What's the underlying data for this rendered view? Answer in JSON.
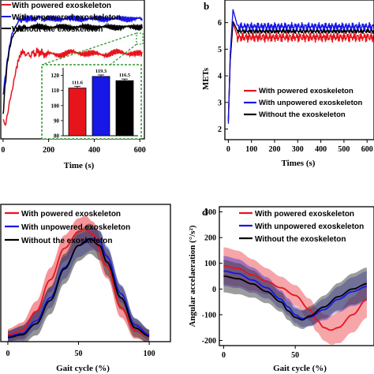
{
  "colors": {
    "powered": "#e8141c",
    "unpowered": "#1717e6",
    "without": "#000000"
  },
  "chart_data": [
    {
      "id": "a",
      "type": "line",
      "xlabel": "Time (s)",
      "xticks": [
        "0",
        "200",
        "400",
        "600"
      ],
      "xlim": [
        -10,
        620
      ],
      "ylim": [
        0,
        1
      ],
      "series": [
        {
          "name": "With powered exoskeleton",
          "x": [
            0,
            10,
            20,
            30,
            40,
            50,
            60,
            70,
            80,
            90,
            100,
            110,
            120,
            130,
            140,
            150,
            160,
            170,
            180,
            200,
            250,
            300,
            350,
            400,
            450,
            500,
            550,
            600,
            610
          ],
          "y": [
            0.14,
            0.1,
            0.18,
            0.28,
            0.35,
            0.44,
            0.52,
            0.58,
            0.62,
            0.63,
            0.6,
            0.62,
            0.59,
            0.63,
            0.6,
            0.64,
            0.61,
            0.63,
            0.6,
            0.62,
            0.6,
            0.63,
            0.61,
            0.62,
            0.6,
            0.63,
            0.61,
            0.62,
            0.61
          ]
        },
        {
          "name": "With unpowered exoskeleton",
          "x": [
            0,
            10,
            20,
            30,
            40,
            50,
            60,
            70,
            80,
            90,
            100,
            120,
            140,
            160,
            180,
            200,
            250,
            300,
            350,
            400,
            450,
            500,
            550,
            600,
            610
          ],
          "y": [
            0.32,
            0.45,
            0.58,
            0.68,
            0.76,
            0.8,
            0.82,
            0.86,
            0.85,
            0.87,
            0.86,
            0.87,
            0.86,
            0.88,
            0.86,
            0.87,
            0.86,
            0.87,
            0.86,
            0.87,
            0.86,
            0.87,
            0.86,
            0.87,
            0.86
          ]
        },
        {
          "name": "Without the exoskeleton",
          "x": [
            0,
            10,
            20,
            30,
            40,
            50,
            60,
            70,
            80,
            90,
            100,
            150,
            200,
            250,
            300,
            350,
            400,
            450,
            500,
            550,
            600,
            610
          ],
          "y": [
            0.18,
            0.4,
            0.56,
            0.66,
            0.73,
            0.76,
            0.78,
            0.8,
            0.79,
            0.81,
            0.8,
            0.81,
            0.8,
            0.81,
            0.8,
            0.81,
            0.8,
            0.81,
            0.8,
            0.81,
            0.8,
            0.81
          ]
        }
      ],
      "inset": {
        "type": "bar",
        "yticks": [
          "120",
          "110",
          "100",
          "90",
          "80"
        ],
        "ylim": [
          80,
          125
        ],
        "values": [
          111.6,
          119.3,
          116.5
        ],
        "value_labels": [
          "111.6",
          "119.3",
          "116.5"
        ],
        "errors": [
          1.2,
          1.0,
          1.1
        ]
      }
    },
    {
      "id": "b",
      "type": "line",
      "panel_letter": "b",
      "ylabel": "METs",
      "xlabel": "Times (s)",
      "xticks": [
        "0",
        "100",
        "200",
        "300",
        "400",
        "500",
        "600"
      ],
      "yticks": [
        "6",
        "5",
        "4",
        "3",
        "2"
      ],
      "xlim": [
        -15,
        630
      ],
      "ylim": [
        1.6,
        6.85
      ],
      "legend": [
        "With powered exoskeleton",
        "With unpowered exoskeleton",
        "Without the exoskeleton"
      ],
      "series": [
        {
          "name": "With powered exoskeleton",
          "base": 5.45,
          "peak": 6.0,
          "start": 2.4,
          "amp": 0.12
        },
        {
          "name": "With unpowered exoskeleton",
          "base": 5.85,
          "peak": 6.5,
          "start": 2.2,
          "amp": 0.1
        },
        {
          "name": "Without the exoskeleton",
          "base": 5.68,
          "peak": 6.05,
          "start": 2.3,
          "amp": 0.06
        }
      ]
    },
    {
      "id": "c",
      "type": "area",
      "xlabel": "Gait cycle (%)",
      "xticks": [
        "0",
        "50",
        "100"
      ],
      "xlim": [
        -5,
        115
      ],
      "ylim": [
        0,
        1
      ],
      "legend": [
        "With powered exoskeleton",
        "With unpowered exoskeleton",
        "Without the exoskeleton"
      ],
      "series": [
        {
          "name": "With powered exoskeleton",
          "x": [
            0,
            10,
            20,
            30,
            40,
            50,
            55,
            60,
            70,
            80,
            90,
            100
          ],
          "y": [
            0.05,
            0.08,
            0.22,
            0.45,
            0.68,
            0.8,
            0.82,
            0.78,
            0.55,
            0.25,
            0.08,
            0.04
          ],
          "sd": 0.07
        },
        {
          "name": "With unpowered exoskeleton",
          "x": [
            0,
            10,
            20,
            30,
            40,
            50,
            60,
            65,
            70,
            80,
            90,
            100
          ],
          "y": [
            0.04,
            0.06,
            0.15,
            0.32,
            0.54,
            0.7,
            0.75,
            0.73,
            0.62,
            0.35,
            0.12,
            0.05
          ],
          "sd": 0.06
        },
        {
          "name": "Without the exoskeleton",
          "x": [
            0,
            10,
            20,
            30,
            40,
            50,
            58,
            65,
            70,
            80,
            90,
            100
          ],
          "y": [
            0.03,
            0.05,
            0.13,
            0.3,
            0.53,
            0.7,
            0.75,
            0.7,
            0.58,
            0.32,
            0.1,
            0.04
          ],
          "sd": 0.08
        }
      ]
    },
    {
      "id": "d",
      "type": "area",
      "panel_letter": "d",
      "ylabel": "Angular accelaeration (°/s²)",
      "xlabel": "Gait cycle (%)",
      "xticks": [
        "0",
        "50"
      ],
      "yticks": [
        "300",
        "200",
        "100",
        "0",
        "-100",
        "-200"
      ],
      "xlim": [
        -3,
        105
      ],
      "ylim": [
        -220,
        320
      ],
      "legend": [
        "With powered exoskeleton",
        "With unpowered exoskeleton",
        "Without the exoskeleton"
      ],
      "series": [
        {
          "name": "With powered exoskeleton",
          "x": [
            0,
            10,
            20,
            30,
            40,
            50,
            60,
            65,
            70,
            75,
            80,
            90,
            100
          ],
          "y": [
            90,
            80,
            55,
            30,
            5,
            -25,
            -80,
            -120,
            -150,
            -160,
            -150,
            -100,
            -40
          ],
          "sd": 80
        },
        {
          "name": "With unpowered exoskeleton",
          "x": [
            0,
            10,
            20,
            30,
            40,
            45,
            50,
            55,
            60,
            70,
            80,
            90,
            100
          ],
          "y": [
            70,
            60,
            35,
            5,
            -40,
            -70,
            -100,
            -115,
            -110,
            -80,
            -40,
            -10,
            10
          ],
          "sd": 65
        },
        {
          "name": "Without the exoskeleton",
          "x": [
            0,
            10,
            20,
            30,
            40,
            45,
            50,
            55,
            60,
            70,
            80,
            90,
            100
          ],
          "y": [
            50,
            40,
            20,
            -10,
            -50,
            -85,
            -110,
            -120,
            -105,
            -70,
            -30,
            0,
            20
          ],
          "sd": 70
        }
      ]
    }
  ]
}
